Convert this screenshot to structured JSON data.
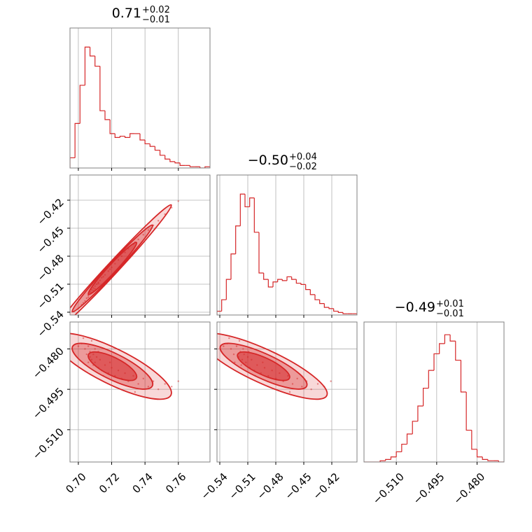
{
  "chart_data": {
    "type": "corner",
    "color": "#d62728",
    "grid": true,
    "params": [
      {
        "title": {
          "text": "0.71",
          "upper": "+0.02",
          "lower": "−0.01"
        },
        "xlim": [
          0.695,
          0.779
        ],
        "xticks": [
          {
            "value": 0.7,
            "label": "0.70"
          },
          {
            "value": 0.72,
            "label": "0.72"
          },
          {
            "value": 0.74,
            "label": "0.74"
          },
          {
            "value": 0.76,
            "label": "0.76"
          }
        ],
        "hist": {
          "ylim": [
            0,
            110
          ],
          "bins": [
            0.695,
            0.698,
            0.701,
            0.704,
            0.707,
            0.71,
            0.713,
            0.716,
            0.719,
            0.722,
            0.725,
            0.728,
            0.731,
            0.734,
            0.737,
            0.74,
            0.743,
            0.746,
            0.749,
            0.752,
            0.755,
            0.758,
            0.761,
            0.764,
            0.767,
            0.77,
            0.773,
            0.776,
            0.779
          ],
          "values": [
            8,
            35,
            65,
            95,
            88,
            80,
            45,
            38,
            27,
            24,
            25,
            24,
            27,
            27,
            22,
            19,
            17,
            14,
            10,
            7,
            5,
            4,
            2,
            2,
            1,
            1,
            0,
            1
          ]
        }
      },
      {
        "title": {
          "text": "−0.50",
          "upper": "+0.04",
          "lower": "−0.02"
        },
        "xlim": [
          -0.543,
          -0.393
        ],
        "xticks": [
          {
            "value": -0.54,
            "label": "−0.54"
          },
          {
            "value": -0.51,
            "label": "−0.51"
          },
          {
            "value": -0.48,
            "label": "−0.48"
          },
          {
            "value": -0.45,
            "label": "−0.45"
          },
          {
            "value": -0.42,
            "label": "−0.42"
          }
        ],
        "hist": {
          "ylim": [
            0,
            110
          ],
          "bins": [
            -0.543,
            -0.538,
            -0.533,
            -0.528,
            -0.523,
            -0.518,
            -0.513,
            -0.508,
            -0.503,
            -0.498,
            -0.493,
            -0.488,
            -0.483,
            -0.478,
            -0.473,
            -0.468,
            -0.463,
            -0.458,
            -0.453,
            -0.448,
            -0.443,
            -0.438,
            -0.433,
            -0.428,
            -0.423,
            -0.418,
            -0.413,
            -0.408,
            -0.403,
            -0.398,
            -0.393
          ],
          "values": [
            3,
            12,
            28,
            48,
            70,
            95,
            85,
            92,
            65,
            33,
            28,
            22,
            26,
            28,
            27,
            30,
            28,
            25,
            24,
            20,
            16,
            12,
            9,
            6,
            5,
            3,
            2,
            1,
            1,
            1
          ]
        }
      },
      {
        "title": {
          "text": "−0.49",
          "upper": "+0.01",
          "lower": "−0.01"
        },
        "xlim": [
          -0.522,
          -0.47
        ],
        "xticks": [
          {
            "value": -0.51,
            "label": "−0.510"
          },
          {
            "value": -0.495,
            "label": "−0.495"
          },
          {
            "value": -0.48,
            "label": "−0.480"
          }
        ],
        "hist": {
          "ylim": [
            0,
            110
          ],
          "bins": [
            -0.522,
            -0.52,
            -0.518,
            -0.516,
            -0.514,
            -0.512,
            -0.51,
            -0.508,
            -0.506,
            -0.504,
            -0.502,
            -0.5,
            -0.498,
            -0.496,
            -0.494,
            -0.492,
            -0.49,
            -0.488,
            -0.486,
            -0.484,
            -0.482,
            -0.48,
            -0.478,
            -0.476,
            -0.474,
            -0.472,
            -0.47
          ],
          "values": [
            0,
            0,
            0,
            1,
            2,
            4,
            8,
            14,
            22,
            32,
            44,
            58,
            72,
            85,
            93,
            100,
            95,
            80,
            55,
            25,
            10,
            4,
            2,
            1,
            1,
            0
          ]
        }
      }
    ],
    "samples": [
      [
        0.702,
        0.704,
        0.705,
        0.706,
        0.707,
        0.707,
        0.708,
        0.709,
        0.709,
        0.71,
        0.711,
        0.712,
        0.713,
        0.714,
        0.716,
        0.718,
        0.72,
        0.722,
        0.724,
        0.726,
        0.728,
        0.73,
        0.733,
        0.736,
        0.739,
        0.742,
        0.745,
        0.748,
        0.752,
        0.756,
        0.76,
        0.703,
        0.706,
        0.71,
        0.715,
        0.719,
        0.708,
        0.712,
        0.734,
        0.7
      ],
      [
        -0.532,
        -0.528,
        -0.525,
        -0.522,
        -0.52,
        -0.518,
        -0.516,
        -0.514,
        -0.517,
        -0.512,
        -0.51,
        -0.508,
        -0.506,
        -0.503,
        -0.5,
        -0.496,
        -0.492,
        -0.488,
        -0.484,
        -0.48,
        -0.476,
        -0.472,
        -0.467,
        -0.462,
        -0.457,
        -0.452,
        -0.447,
        -0.442,
        -0.435,
        -0.428,
        -0.421,
        -0.53,
        -0.524,
        -0.515,
        -0.502,
        -0.494,
        -0.519,
        -0.509,
        -0.465,
        -0.536
      ],
      [
        -0.478,
        -0.48,
        -0.482,
        -0.479,
        -0.483,
        -0.481,
        -0.484,
        -0.482,
        -0.486,
        -0.485,
        -0.483,
        -0.487,
        -0.484,
        -0.488,
        -0.486,
        -0.489,
        -0.487,
        -0.49,
        -0.488,
        -0.491,
        -0.489,
        -0.492,
        -0.49,
        -0.493,
        -0.491,
        -0.494,
        -0.492,
        -0.495,
        -0.493,
        -0.494,
        -0.492,
        -0.476,
        -0.485,
        -0.48,
        -0.49,
        -0.485,
        -0.477,
        -0.481,
        -0.496,
        -0.479
      ]
    ]
  }
}
